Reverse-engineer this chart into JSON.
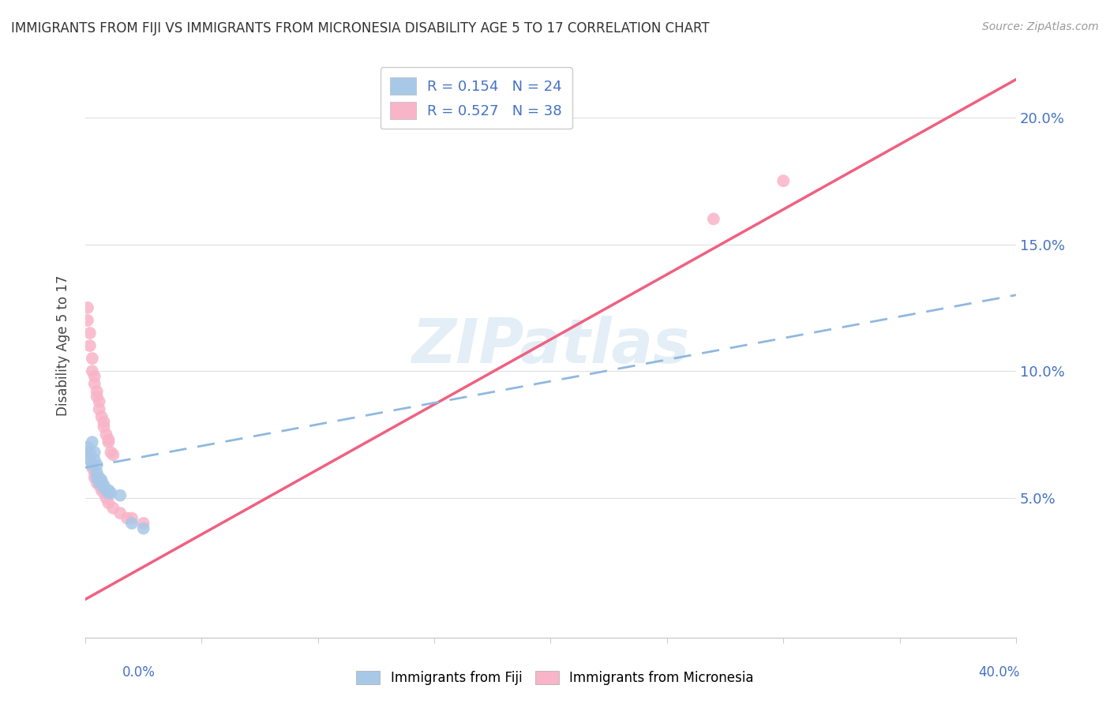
{
  "title": "IMMIGRANTS FROM FIJI VS IMMIGRANTS FROM MICRONESIA DISABILITY AGE 5 TO 17 CORRELATION CHART",
  "source": "Source: ZipAtlas.com",
  "ylabel": "Disability Age 5 to 17",
  "xlim": [
    0.0,
    0.4
  ],
  "ylim": [
    -0.005,
    0.225
  ],
  "yticks": [
    0.05,
    0.1,
    0.15,
    0.2
  ],
  "ytick_labels": [
    "5.0%",
    "10.0%",
    "15.0%",
    "20.0%"
  ],
  "xticks": [
    0.0,
    0.05,
    0.1,
    0.15,
    0.2,
    0.25,
    0.3,
    0.35,
    0.4
  ],
  "fiji_R": 0.154,
  "fiji_N": 24,
  "micronesia_R": 0.527,
  "micronesia_N": 38,
  "fiji_color": "#a8c8e8",
  "micronesia_color": "#f8b4c8",
  "fiji_line_color": "#90b8e0",
  "micronesia_line_color": "#f06080",
  "fiji_scatter": [
    [
      0.001,
      0.07
    ],
    [
      0.002,
      0.068
    ],
    [
      0.002,
      0.065
    ],
    [
      0.003,
      0.063
    ],
    [
      0.003,
      0.072
    ],
    [
      0.004,
      0.068
    ],
    [
      0.004,
      0.065
    ],
    [
      0.005,
      0.063
    ],
    [
      0.005,
      0.06
    ],
    [
      0.005,
      0.058
    ],
    [
      0.006,
      0.058
    ],
    [
      0.006,
      0.057
    ],
    [
      0.006,
      0.056
    ],
    [
      0.007,
      0.057
    ],
    [
      0.007,
      0.056
    ],
    [
      0.008,
      0.055
    ],
    [
      0.008,
      0.054
    ],
    [
      0.009,
      0.053
    ],
    [
      0.01,
      0.053
    ],
    [
      0.01,
      0.052
    ],
    [
      0.011,
      0.052
    ],
    [
      0.015,
      0.051
    ],
    [
      0.02,
      0.04
    ],
    [
      0.025,
      0.038
    ]
  ],
  "micronesia_scatter": [
    [
      0.001,
      0.125
    ],
    [
      0.001,
      0.12
    ],
    [
      0.002,
      0.115
    ],
    [
      0.002,
      0.11
    ],
    [
      0.003,
      0.105
    ],
    [
      0.003,
      0.1
    ],
    [
      0.004,
      0.098
    ],
    [
      0.004,
      0.095
    ],
    [
      0.005,
      0.092
    ],
    [
      0.005,
      0.09
    ],
    [
      0.006,
      0.088
    ],
    [
      0.006,
      0.085
    ],
    [
      0.007,
      0.082
    ],
    [
      0.008,
      0.08
    ],
    [
      0.008,
      0.078
    ],
    [
      0.009,
      0.075
    ],
    [
      0.01,
      0.073
    ],
    [
      0.01,
      0.072
    ],
    [
      0.011,
      0.068
    ],
    [
      0.012,
      0.067
    ],
    [
      0.001,
      0.068
    ],
    [
      0.002,
      0.065
    ],
    [
      0.003,
      0.062
    ],
    [
      0.004,
      0.06
    ],
    [
      0.004,
      0.058
    ],
    [
      0.005,
      0.056
    ],
    [
      0.006,
      0.055
    ],
    [
      0.007,
      0.053
    ],
    [
      0.008,
      0.052
    ],
    [
      0.009,
      0.05
    ],
    [
      0.01,
      0.048
    ],
    [
      0.012,
      0.046
    ],
    [
      0.015,
      0.044
    ],
    [
      0.018,
      0.042
    ],
    [
      0.02,
      0.042
    ],
    [
      0.025,
      0.04
    ],
    [
      0.3,
      0.175
    ],
    [
      0.27,
      0.16
    ]
  ],
  "fiji_line": [
    [
      0.0,
      0.062
    ],
    [
      0.4,
      0.13
    ]
  ],
  "micronesia_line": [
    [
      0.0,
      0.01
    ],
    [
      0.4,
      0.215
    ]
  ],
  "watermark": "ZIPatlas",
  "background_color": "#ffffff",
  "grid_color": "#e0e0e0"
}
